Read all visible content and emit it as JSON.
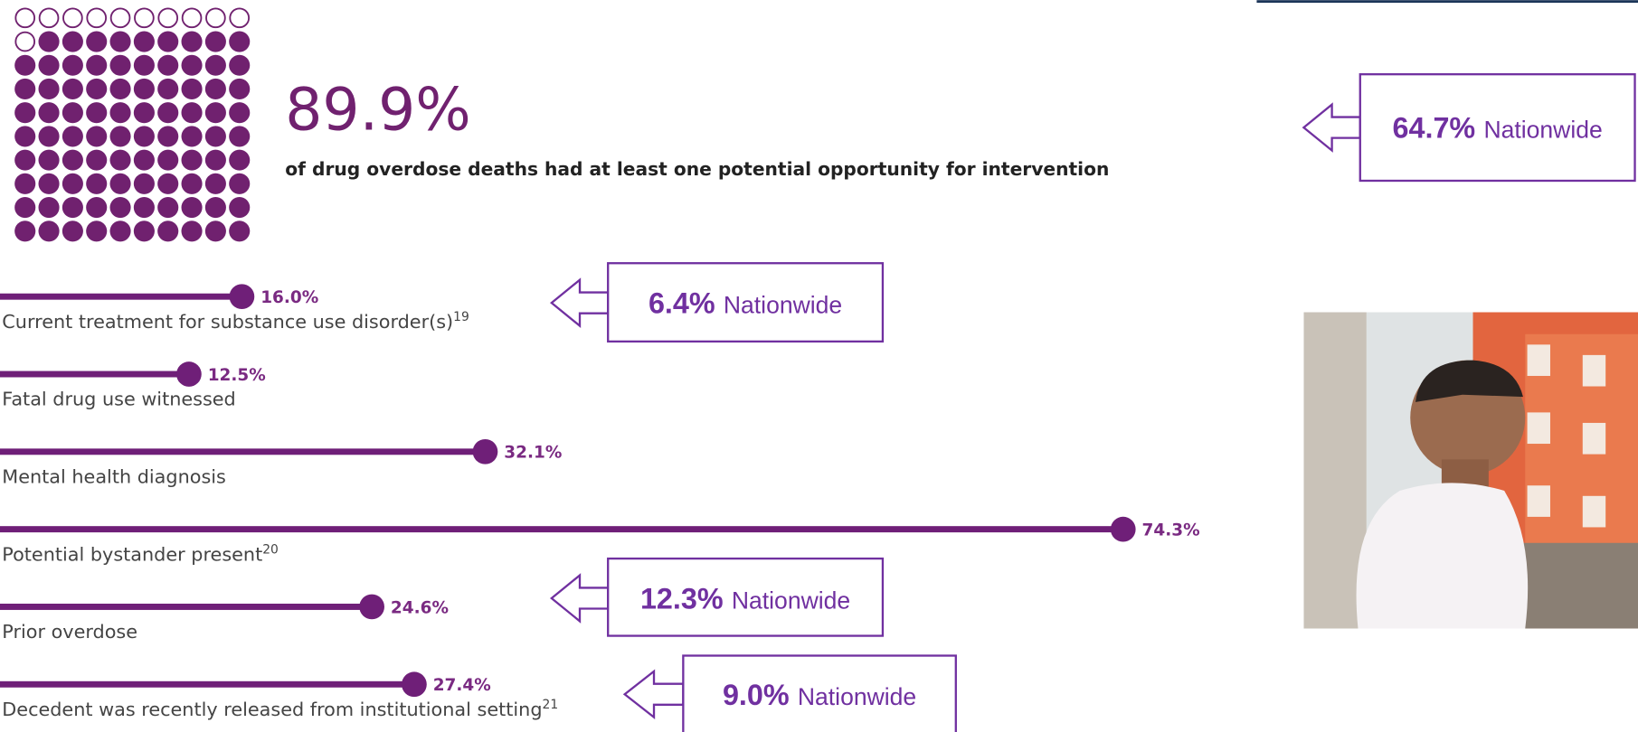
{
  "chart_data": [
    {
      "type": "waffle",
      "value": 89.9,
      "value_label": "89.9%",
      "color": "#70216f",
      "subtitle": "of drug overdose deaths had at least one potential opportunity for intervention"
    },
    {
      "type": "lollipop",
      "categories": [
        "Current treatment for substance use disorder(s)",
        "Fatal drug use witnessed",
        "Mental health diagnosis",
        "Potential bystander present",
        "Prior overdose",
        "Decedent was recently released from institutional setting"
      ],
      "footnotes": [
        "19",
        null,
        null,
        "20",
        null,
        "21"
      ],
      "values": [
        16.0,
        12.5,
        32.1,
        74.3,
        24.6,
        27.4
      ],
      "value_labels": [
        "16.0%",
        "12.5%",
        "32.1%",
        "74.3%",
        "24.6%",
        "27.4%"
      ],
      "color": "#6f1f78"
    }
  ],
  "callouts": [
    {
      "value": "64.7%",
      "label": "Nationwide"
    },
    {
      "value": "6.4%",
      "label": "Nationwide"
    },
    {
      "value": "12.3%",
      "label": "Nationwide"
    },
    {
      "value": "9.0%",
      "label": "Nationwide"
    }
  ]
}
